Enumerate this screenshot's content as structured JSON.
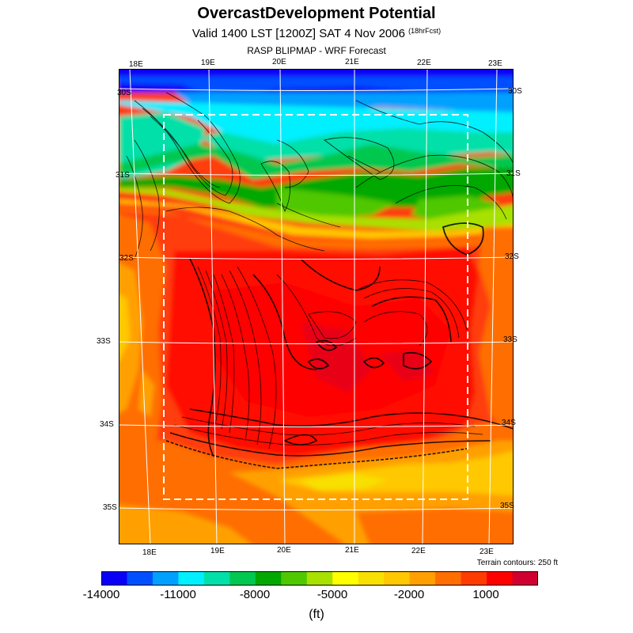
{
  "header": {
    "title": "OvercastDevelopment Potential",
    "valid_line": "Valid 1400 LST [1200Z] SAT 4 Nov 2006",
    "forecast_note": "(18hrFcst)",
    "source_line": "RASP BLIPMAP - WRF Forecast"
  },
  "map": {
    "top_lon_labels": [
      "18E",
      "19E",
      "20E",
      "21E",
      "22E",
      "23E"
    ],
    "bottom_lon_labels": [
      "18E",
      "19E",
      "20E",
      "21E",
      "22E",
      "23E"
    ],
    "left_lat_labels": [
      "30S",
      "31S",
      "32S",
      "33S",
      "34S",
      "35S"
    ],
    "right_lat_labels": [
      "30S",
      "31S",
      "32S",
      "33S",
      "34S",
      "35S"
    ],
    "terrain_note": "Terrain contours: 250 ft"
  },
  "colorbar": {
    "colors": [
      "#0a00f8",
      "#0050ff",
      "#00a0ff",
      "#00f0ff",
      "#00e0a8",
      "#00c850",
      "#00a800",
      "#50c800",
      "#a8e000",
      "#ffff00",
      "#f8e000",
      "#ffc800",
      "#ffa000",
      "#ff6e00",
      "#ff3c00",
      "#ff0000",
      "#d00030"
    ],
    "tick_labels": [
      "-14000",
      "-11000",
      "-8000",
      "-5000",
      "-2000",
      "1000"
    ],
    "unit": "(ft)"
  }
}
